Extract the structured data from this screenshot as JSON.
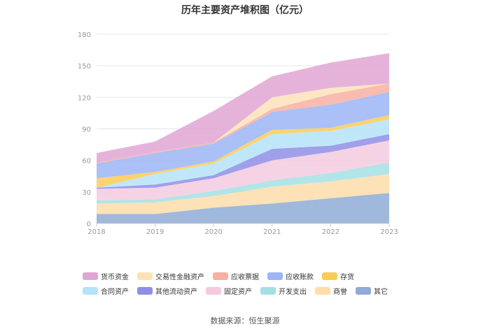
{
  "chart_data": {
    "type": "area",
    "stacked": true,
    "title": "历年主要资产堆积图（亿元）",
    "categories": [
      "2018",
      "2019",
      "2020",
      "2021",
      "2022",
      "2023"
    ],
    "yticks": [
      "0",
      "30",
      "60",
      "90",
      "120",
      "150",
      "180"
    ],
    "ylim": [
      0,
      180
    ],
    "series": [
      {
        "name": "其它",
        "color": "#8fabd6",
        "values": [
          9,
          9,
          15,
          19,
          24,
          29
        ]
      },
      {
        "name": "商誉",
        "color": "#fdddaa",
        "values": [
          10,
          11,
          11,
          16,
          16,
          18
        ]
      },
      {
        "name": "开发支出",
        "color": "#a5e0e3",
        "values": [
          3,
          3,
          5,
          6,
          8,
          11
        ]
      },
      {
        "name": "固定资产",
        "color": "#f3cbe1",
        "values": [
          11,
          11,
          12,
          19,
          20,
          21
        ]
      },
      {
        "name": "其他流动资产",
        "color": "#8f8fe6",
        "values": [
          1,
          3,
          3,
          11,
          6,
          6
        ]
      },
      {
        "name": "合同资产",
        "color": "#b5e3f8",
        "values": [
          0,
          10,
          11,
          14,
          14,
          14
        ]
      },
      {
        "name": "存货",
        "color": "#fbcb57",
        "values": [
          9,
          2,
          2,
          4,
          3,
          4
        ]
      },
      {
        "name": "应收账款",
        "color": "#9bb5f5",
        "values": [
          14,
          18,
          17,
          17,
          22,
          22
        ]
      },
      {
        "name": "应收票据",
        "color": "#f7b0a2",
        "values": [
          1,
          1,
          1,
          3,
          10,
          8
        ]
      },
      {
        "name": "交易性金融资产",
        "color": "#fde2b8",
        "values": [
          0,
          0,
          0,
          11,
          6,
          0
        ]
      },
      {
        "name": "货币资金",
        "color": "#e0a6d3",
        "values": [
          9,
          10,
          30,
          20,
          24,
          29
        ]
      }
    ],
    "legend_order": [
      "货币资金",
      "交易性金融资产",
      "应收票据",
      "应收账款",
      "存货",
      "合同资产",
      "其他流动资产",
      "固定资产",
      "开发支出",
      "商誉",
      "其它"
    ],
    "legend_position": "bottom"
  },
  "source": "数据来源：恒生聚源"
}
